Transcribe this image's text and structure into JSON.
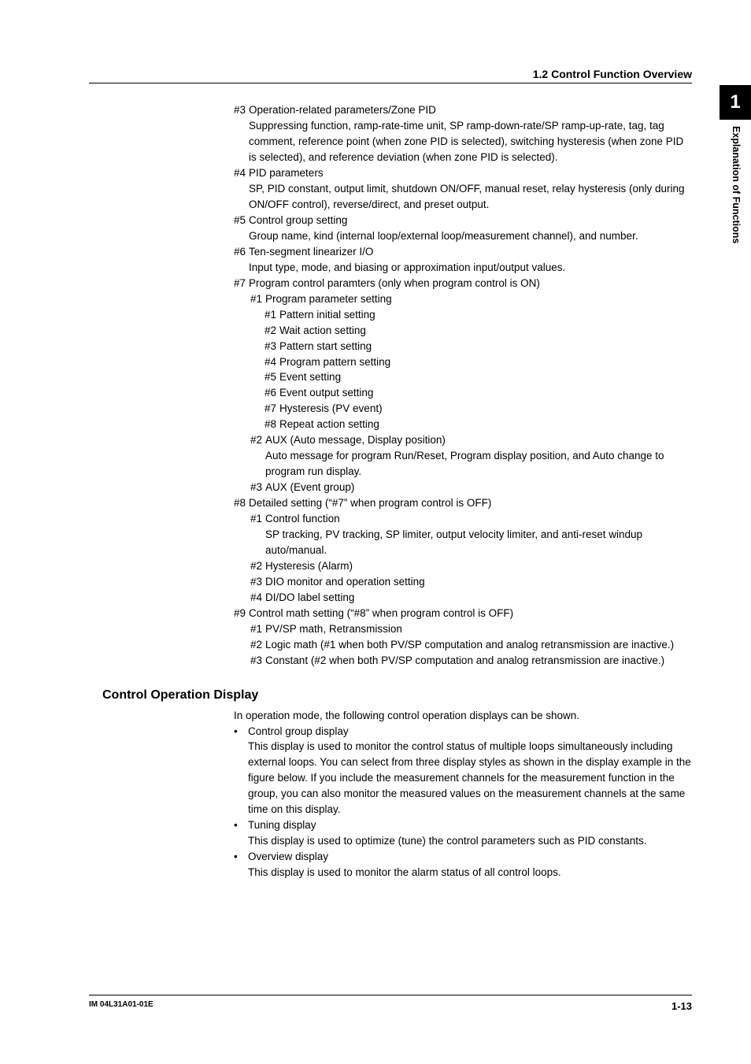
{
  "header": {
    "title": "1.2  Control Function Overview"
  },
  "side": {
    "chapter": "1",
    "label": "Explanation of Functions"
  },
  "items": {
    "i3": {
      "num": "#3",
      "title": "Operation-related parameters/Zone PID",
      "desc": "Suppressing function, ramp-rate-time unit, SP ramp-down-rate/SP ramp-up-rate, tag, tag comment, reference point (when zone PID is selected), switching hysteresis (when zone PID is selected), and reference deviation (when zone PID is selected)."
    },
    "i4": {
      "num": "#4",
      "title": "PID parameters",
      "desc": "SP, PID constant, output limit, shutdown ON/OFF, manual reset, relay hysteresis (only during ON/OFF control), reverse/direct, and preset output."
    },
    "i5": {
      "num": "#5",
      "title": "Control group setting",
      "desc": "Group name, kind (internal loop/external loop/measurement channel), and number."
    },
    "i6": {
      "num": "#6",
      "title": "Ten-segment linearizer I/O",
      "desc": "Input type, mode, and biasing or approximation input/output values."
    },
    "i7": {
      "num": "#7",
      "title": "Program control paramters (only when program control is ON)",
      "s1": {
        "num": "#1",
        "title": "Program parameter setting",
        "p1": {
          "num": "#1",
          "text": "Pattern initial setting"
        },
        "p2": {
          "num": "#2",
          "text": "Wait action setting"
        },
        "p3": {
          "num": "#3",
          "text": "Pattern start setting"
        },
        "p4": {
          "num": "#4",
          "text": "Program pattern setting"
        },
        "p5": {
          "num": "#5",
          "text": "Event setting"
        },
        "p6": {
          "num": "#6",
          "text": "Event output setting"
        },
        "p7": {
          "num": "#7",
          "text": "Hysteresis (PV event)"
        },
        "p8": {
          "num": "#8",
          "text": "Repeat action setting"
        }
      },
      "s2": {
        "num": "#2",
        "title": "AUX (Auto message, Display position)",
        "desc": "Auto message for program Run/Reset, Program display position, and Auto change to program run display."
      },
      "s3": {
        "num": "#3",
        "title": "AUX (Event group)"
      }
    },
    "i8": {
      "num": "#8",
      "title": "Detailed setting (“#7” when program control is OFF)",
      "s1": {
        "num": "#1",
        "title": "Control function",
        "desc": "SP tracking, PV tracking, SP limiter, output velocity limiter, and anti-reset windup auto/manual."
      },
      "s2": {
        "num": "#2",
        "title": "Hysteresis (Alarm)"
      },
      "s3": {
        "num": "#3",
        "title": "DIO monitor and operation setting"
      },
      "s4": {
        "num": "#4",
        "title": "DI/DO label setting"
      }
    },
    "i9": {
      "num": "#9",
      "title": "Control math setting (“#8” when program control is OFF)",
      "s1": {
        "num": "#1",
        "title": "PV/SP math, Retransmission"
      },
      "s2": {
        "num": "#2",
        "title": "Logic math (#1 when both PV/SP computation and analog retransmission are inactive.)"
      },
      "s3": {
        "num": "#3",
        "title": "Constant (#2 when both PV/SP computation and analog retransmission are inactive.)"
      }
    }
  },
  "section": {
    "heading": "Control Operation Display",
    "intro": "In operation mode, the following control operation displays can be shown.",
    "b1": {
      "title": "Control group display",
      "desc": "This display is used to monitor the control status of multiple loops simultaneously including external loops.  You can select from three display styles as shown in the display example in the figure below.  If you include the measurement channels for the measurement function in the group, you can also monitor the measured values on the measurement channels at the same time on this display."
    },
    "b2": {
      "title": "Tuning display",
      "desc": "This display is used to optimize (tune) the control parameters such as PID constants."
    },
    "b3": {
      "title": "Overview display",
      "desc": "This display is used to monitor the alarm status of all control loops."
    }
  },
  "footer": {
    "left": "IM 04L31A01-01E",
    "right": "1-13"
  },
  "bullet": "•"
}
